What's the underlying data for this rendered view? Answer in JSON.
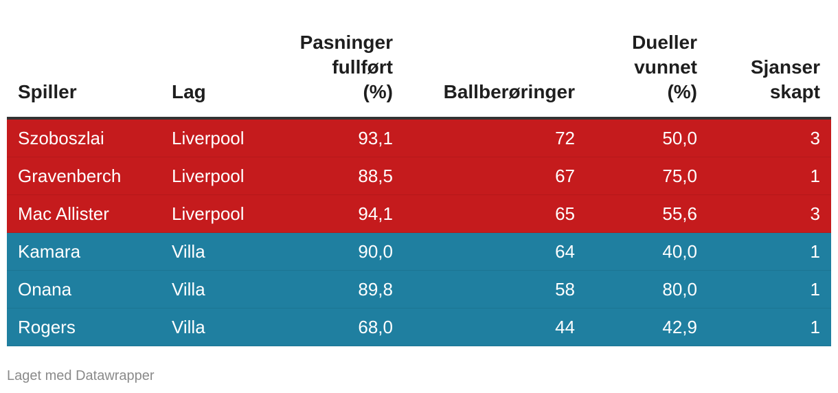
{
  "chart_data": {
    "type": "table",
    "columns": [
      "Spiller",
      "Lag",
      "Pasninger\nfullført\n(%)",
      "Ballberøringer",
      "Dueller\nvunnet\n(%)",
      "Sjanser\nskapt"
    ],
    "rows": [
      {
        "spiller": "Szoboszlai",
        "lag": "Liverpool",
        "pasninger": "93,1",
        "ballberoringer": "72",
        "dueller": "50,0",
        "sjanser": "3",
        "color": "#c51b1d"
      },
      {
        "spiller": "Gravenberch",
        "lag": "Liverpool",
        "pasninger": "88,5",
        "ballberoringer": "67",
        "dueller": "75,0",
        "sjanser": "1",
        "color": "#c51b1d"
      },
      {
        "spiller": "Mac Allister",
        "lag": "Liverpool",
        "pasninger": "94,1",
        "ballberoringer": "65",
        "dueller": "55,6",
        "sjanser": "3",
        "color": "#c51b1d"
      },
      {
        "spiller": "Kamara",
        "lag": "Villa",
        "pasninger": "90,0",
        "ballberoringer": "64",
        "dueller": "40,0",
        "sjanser": "1",
        "color": "#1f7fa0"
      },
      {
        "spiller": "Onana",
        "lag": "Villa",
        "pasninger": "89,8",
        "ballberoringer": "58",
        "dueller": "80,0",
        "sjanser": "1",
        "color": "#1f7fa0"
      },
      {
        "spiller": "Rogers",
        "lag": "Villa",
        "pasninger": "68,0",
        "ballberoringer": "44",
        "dueller": "42,9",
        "sjanser": "1",
        "color": "#1f7fa0"
      }
    ]
  },
  "footer": {
    "credit": "Laget med Datawrapper"
  }
}
